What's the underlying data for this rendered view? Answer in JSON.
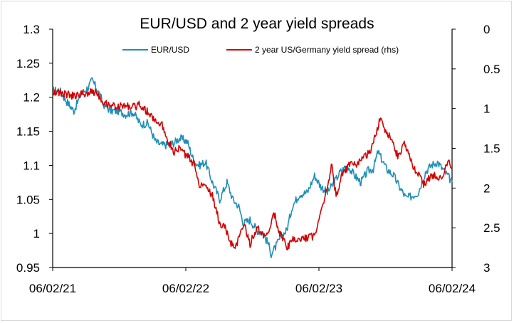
{
  "chart_data": {
    "type": "line",
    "title": "EUR/USD and 2 year yield spreads",
    "xlabel": "",
    "ylabel": "",
    "y2label": "",
    "x_ticks": [
      "06/02/21",
      "06/02/22",
      "06/02/23",
      "06/02/24"
    ],
    "x_range": [
      "2021-02-06",
      "2024-02-06"
    ],
    "ylim": [
      0.95,
      1.3
    ],
    "y_ticks": [
      "0.95",
      "1",
      "1.05",
      "1.1",
      "1.15",
      "1.2",
      "1.25",
      "1.3"
    ],
    "y2lim": [
      0,
      3
    ],
    "y2_inverted": true,
    "y2_ticks": [
      "0",
      "0.5",
      "1",
      "1.5",
      "2",
      "2.5",
      "3"
    ],
    "grid": false,
    "legend_position": "top",
    "series": [
      {
        "name": "EUR/USD",
        "axis": "left",
        "color": "#1f8fb8",
        "x": [
          "2021-02-06",
          "2021-02-25",
          "2021-03-15",
          "2021-04-05",
          "2021-04-25",
          "2021-05-15",
          "2021-05-25",
          "2021-06-10",
          "2021-06-25",
          "2021-07-15",
          "2021-08-05",
          "2021-08-25",
          "2021-09-15",
          "2021-10-05",
          "2021-10-25",
          "2021-11-15",
          "2021-11-30",
          "2021-12-15",
          "2022-01-05",
          "2022-01-20",
          "2022-02-10",
          "2022-03-01",
          "2022-03-15",
          "2022-04-01",
          "2022-04-20",
          "2022-05-10",
          "2022-05-30",
          "2022-06-15",
          "2022-07-01",
          "2022-07-14",
          "2022-08-01",
          "2022-08-20",
          "2022-09-05",
          "2022-09-20",
          "2022-09-28",
          "2022-10-10",
          "2022-10-25",
          "2022-11-10",
          "2022-11-25",
          "2022-12-15",
          "2023-01-05",
          "2023-01-25",
          "2023-02-10",
          "2023-03-01",
          "2023-03-20",
          "2023-04-05",
          "2023-04-25",
          "2023-05-15",
          "2023-06-01",
          "2023-06-20",
          "2023-07-05",
          "2023-07-18",
          "2023-08-10",
          "2023-08-30",
          "2023-09-15",
          "2023-10-03",
          "2023-10-20",
          "2023-11-05",
          "2023-11-25",
          "2023-12-10",
          "2023-12-28",
          "2024-01-10",
          "2024-01-25",
          "2024-02-06"
        ],
        "values": [
          1.21,
          1.21,
          1.195,
          1.18,
          1.205,
          1.215,
          1.225,
          1.21,
          1.19,
          1.18,
          1.18,
          1.175,
          1.178,
          1.16,
          1.162,
          1.135,
          1.13,
          1.13,
          1.133,
          1.14,
          1.135,
          1.105,
          1.1,
          1.105,
          1.075,
          1.05,
          1.075,
          1.05,
          1.04,
          1.015,
          1.02,
          1.005,
          1.0,
          0.985,
          0.97,
          0.98,
          0.995,
          1.005,
          1.04,
          1.058,
          1.06,
          1.085,
          1.07,
          1.06,
          1.075,
          1.09,
          1.1,
          1.085,
          1.075,
          1.092,
          1.095,
          1.12,
          1.095,
          1.085,
          1.068,
          1.052,
          1.055,
          1.06,
          1.09,
          1.1,
          1.105,
          1.095,
          1.085,
          1.075
        ]
      },
      {
        "name": "2 year US/Germany yield spread (rhs)",
        "axis": "right",
        "color": "#d40000",
        "x": [
          "2021-02-06",
          "2021-02-25",
          "2021-03-15",
          "2021-04-05",
          "2021-04-25",
          "2021-05-15",
          "2021-06-05",
          "2021-06-25",
          "2021-07-15",
          "2021-08-05",
          "2021-08-25",
          "2021-09-15",
          "2021-10-05",
          "2021-10-25",
          "2021-11-15",
          "2021-12-05",
          "2021-12-20",
          "2022-01-05",
          "2022-01-20",
          "2022-02-10",
          "2022-03-01",
          "2022-03-15",
          "2022-04-01",
          "2022-04-20",
          "2022-05-10",
          "2022-05-25",
          "2022-06-10",
          "2022-06-25",
          "2022-07-15",
          "2022-08-01",
          "2022-08-20",
          "2022-09-05",
          "2022-09-20",
          "2022-10-05",
          "2022-10-20",
          "2022-11-10",
          "2022-11-25",
          "2022-12-15",
          "2023-01-05",
          "2023-01-25",
          "2023-02-10",
          "2023-03-01",
          "2023-03-12",
          "2023-03-25",
          "2023-04-10",
          "2023-05-01",
          "2023-05-20",
          "2023-06-10",
          "2023-06-28",
          "2023-07-10",
          "2023-07-25",
          "2023-08-10",
          "2023-08-25",
          "2023-09-10",
          "2023-09-28",
          "2023-10-15",
          "2023-11-01",
          "2023-11-20",
          "2023-12-10",
          "2023-12-28",
          "2024-01-10",
          "2024-01-25",
          "2024-02-06"
        ],
        "values": [
          0.78,
          0.8,
          0.82,
          0.84,
          0.82,
          0.8,
          0.78,
          0.92,
          0.95,
          0.98,
          0.96,
          0.98,
          0.95,
          1.05,
          1.15,
          1.22,
          1.4,
          1.55,
          1.5,
          1.6,
          1.7,
          1.95,
          1.95,
          2.1,
          2.45,
          2.5,
          2.7,
          2.72,
          2.45,
          2.7,
          2.5,
          2.6,
          2.6,
          2.3,
          2.55,
          2.75,
          2.65,
          2.65,
          2.62,
          2.6,
          2.3,
          2.0,
          1.7,
          2.1,
          1.85,
          1.7,
          1.72,
          1.6,
          1.55,
          1.35,
          1.1,
          1.3,
          1.4,
          1.6,
          1.45,
          1.65,
          1.8,
          1.95,
          1.85,
          1.85,
          1.9,
          1.65,
          1.75
        ]
      }
    ]
  }
}
